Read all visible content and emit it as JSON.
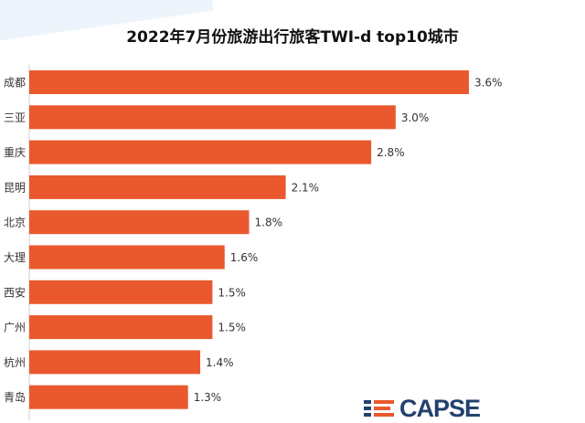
{
  "chart_data": {
    "type": "bar",
    "orientation": "horizontal",
    "title": "2022年7月份旅游出行旅客TWI-d top10城市",
    "categories": [
      "成都",
      "三亚",
      "重庆",
      "昆明",
      "北京",
      "大理",
      "西安",
      "广州",
      "杭州",
      "青岛"
    ],
    "values": [
      3.6,
      3.0,
      2.8,
      2.1,
      1.8,
      1.6,
      1.5,
      1.5,
      1.4,
      1.3
    ],
    "labels": [
      "3.6%",
      "3.0%",
      "2.8%",
      "2.1%",
      "1.8%",
      "1.6%",
      "1.5%",
      "1.5%",
      "1.4%",
      "1.3%"
    ],
    "unit": "%",
    "xlim": [
      0,
      3.6
    ],
    "grid": false,
    "bar_color": "#e9592d"
  },
  "logo": {
    "text": "CAPSE",
    "navy": "#24406e",
    "orange": "#e9592d"
  }
}
